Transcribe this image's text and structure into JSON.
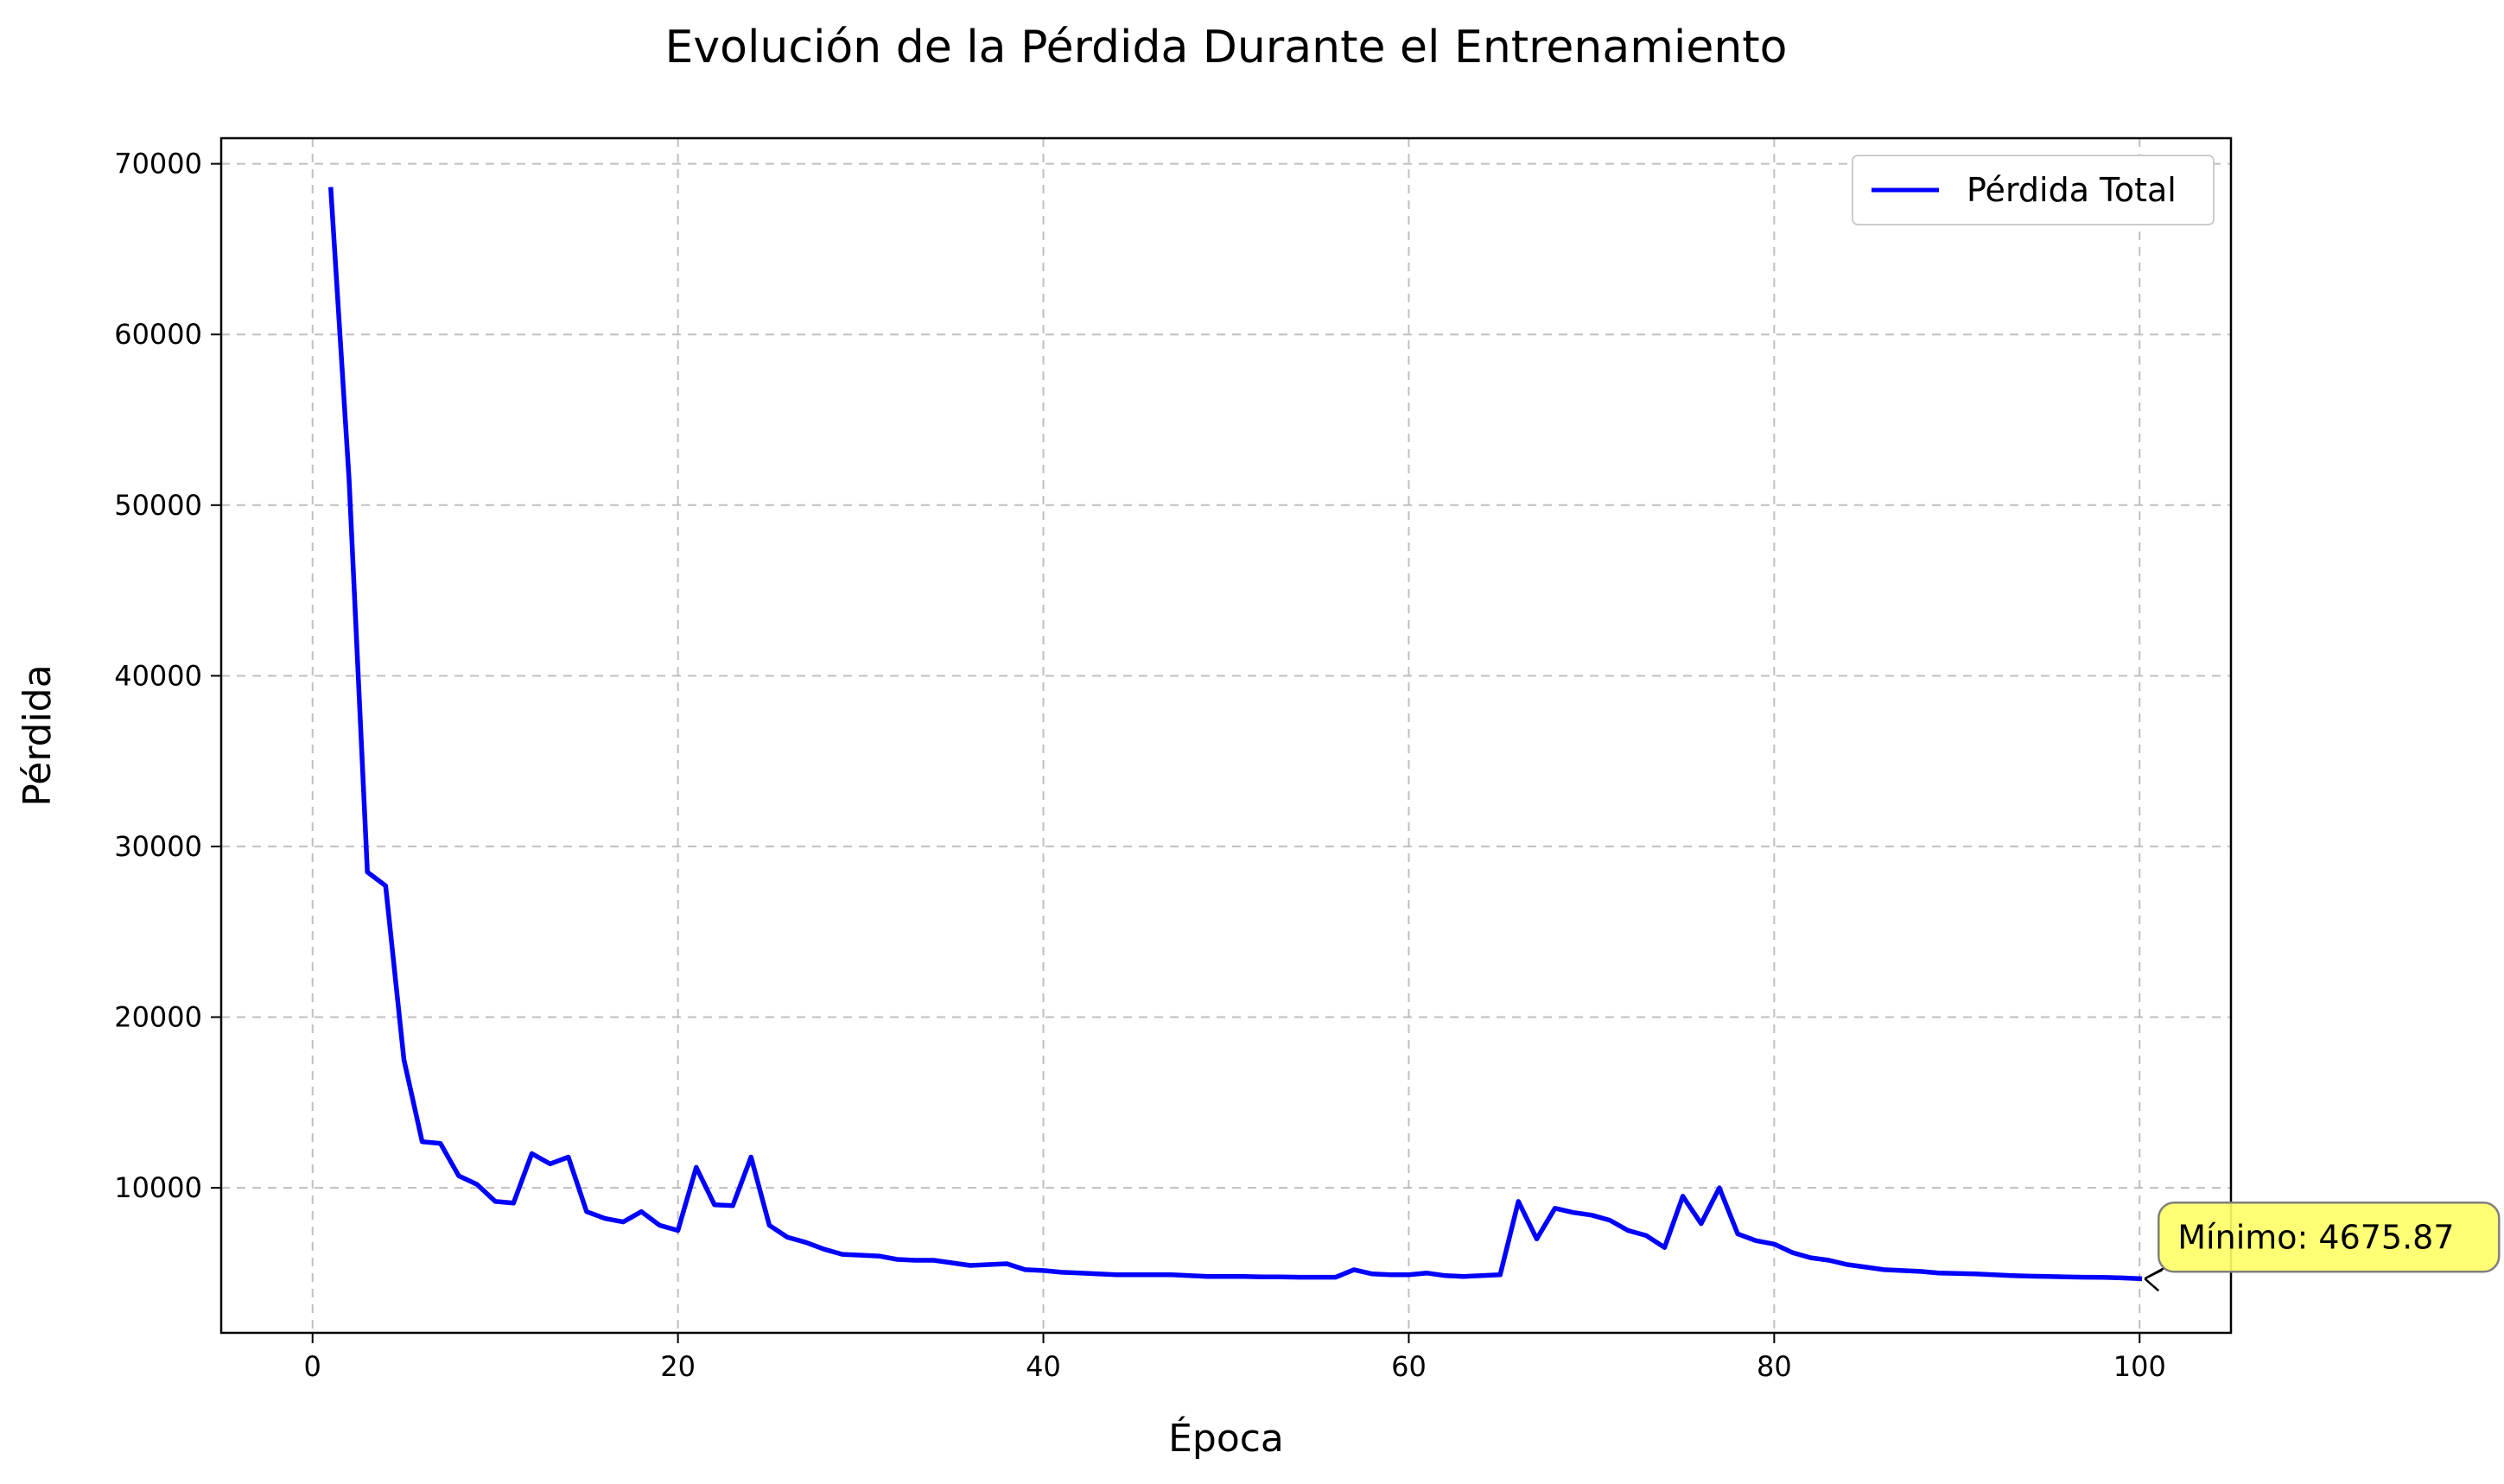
{
  "chart_data": {
    "type": "line",
    "title": "Evolución de la Pérdida Durante el Entrenamiento",
    "xlabel": "Época",
    "ylabel": "Pérdida",
    "xlim": [
      -5,
      105
    ],
    "ylim": [
      1500,
      71500
    ],
    "xticks": [
      0,
      20,
      40,
      60,
      80,
      100
    ],
    "yticks": [
      10000,
      20000,
      30000,
      40000,
      50000,
      60000,
      70000
    ],
    "grid": true,
    "legend_position": "top-right",
    "series": [
      {
        "name": "Pérdida Total",
        "color": "#0000ff",
        "x": [
          1,
          2,
          3,
          4,
          5,
          6,
          7,
          8,
          9,
          10,
          11,
          12,
          13,
          14,
          15,
          16,
          17,
          18,
          19,
          20,
          21,
          22,
          23,
          24,
          25,
          26,
          27,
          28,
          29,
          30,
          31,
          32,
          33,
          34,
          35,
          36,
          37,
          38,
          39,
          40,
          41,
          42,
          43,
          44,
          45,
          46,
          47,
          48,
          49,
          50,
          51,
          52,
          53,
          54,
          55,
          56,
          57,
          58,
          59,
          60,
          61,
          62,
          63,
          64,
          65,
          66,
          67,
          68,
          69,
          70,
          71,
          72,
          73,
          74,
          75,
          76,
          77,
          78,
          79,
          80,
          81,
          82,
          83,
          84,
          85,
          86,
          87,
          88,
          89,
          90,
          91,
          92,
          93,
          94,
          95,
          96,
          97,
          98,
          99,
          100
        ],
        "y": [
          68500,
          51500,
          28500,
          27700,
          17500,
          12700,
          12600,
          10700,
          10200,
          9200,
          9100,
          12000,
          11400,
          11800,
          8600,
          8200,
          8000,
          8600,
          7800,
          7500,
          11200,
          9000,
          8950,
          11800,
          7800,
          7100,
          6800,
          6400,
          6100,
          6050,
          6000,
          5800,
          5750,
          5750,
          5600,
          5450,
          5500,
          5550,
          5200,
          5150,
          5050,
          5000,
          4950,
          4900,
          4900,
          4900,
          4900,
          4850,
          4800,
          4800,
          4800,
          4780,
          4780,
          4760,
          4760,
          4760,
          5200,
          4950,
          4900,
          4900,
          5000,
          4850,
          4800,
          4850,
          4900,
          9200,
          7000,
          8800,
          8550,
          8400,
          8100,
          7500,
          7200,
          6500,
          9500,
          7900,
          10000,
          7300,
          6900,
          6700,
          6200,
          5900,
          5750,
          5500,
          5350,
          5200,
          5150,
          5100,
          5000,
          4980,
          4950,
          4900,
          4850,
          4820,
          4800,
          4780,
          4760,
          4750,
          4720,
          4675.87
        ]
      }
    ],
    "annotation": {
      "text": "Mínimo: 4675.87",
      "x": 100,
      "y": 4675.87,
      "box_color": "#ffff66",
      "box_edge": "#7f7f7f"
    }
  }
}
